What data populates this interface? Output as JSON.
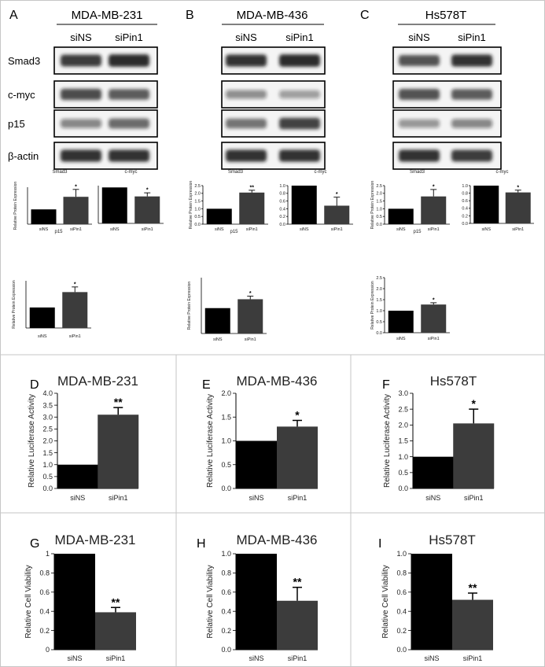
{
  "colors": {
    "bar_black": "#000000",
    "bar_dark": "#3c3c3c",
    "band": "#1a1a1a",
    "panel_border": "#bfbfbf"
  },
  "blots": [
    {
      "panel": "A",
      "cell_line": "MDA-MB-231",
      "lanes": [
        "siNS",
        "siPin1"
      ],
      "rows": [
        {
          "label": "Smad3",
          "intensity": [
            0.85,
            0.95
          ]
        },
        {
          "label": "c-myc",
          "intensity": [
            0.75,
            0.65
          ]
        },
        {
          "label": "p15",
          "intensity": [
            0.35,
            0.55
          ]
        },
        {
          "label": "β-actin",
          "intensity": [
            0.9,
            0.9
          ]
        }
      ]
    },
    {
      "panel": "B",
      "cell_line": "MDA-MB-436",
      "lanes": [
        "siNS",
        "siPin1"
      ],
      "rows": [
        {
          "label": "Smad3",
          "intensity": [
            0.9,
            0.95
          ]
        },
        {
          "label": "c-myc",
          "intensity": [
            0.3,
            0.2
          ]
        },
        {
          "label": "p15",
          "intensity": [
            0.5,
            0.8
          ]
        },
        {
          "label": "β-actin",
          "intensity": [
            0.9,
            0.9
          ]
        }
      ]
    },
    {
      "panel": "C",
      "cell_line": "Hs578T",
      "lanes": [
        "siNS",
        "siPin1"
      ],
      "rows": [
        {
          "label": "Smad3",
          "intensity": [
            0.7,
            0.9
          ]
        },
        {
          "label": "c-myc",
          "intensity": [
            0.7,
            0.65
          ]
        },
        {
          "label": "p15",
          "intensity": [
            0.25,
            0.35
          ]
        },
        {
          "label": "β-actin",
          "intensity": [
            0.9,
            0.85
          ]
        }
      ]
    }
  ],
  "chart_data": [
    {
      "type": "bar",
      "panel": "A",
      "title": "Smad3",
      "categories": [
        "siNS",
        "siPin1"
      ],
      "values": [
        1.0,
        1.85
      ],
      "errors": [
        0,
        0.5
      ],
      "sig": [
        "",
        "*"
      ],
      "ylabel": "Relative Protein Expression",
      "ylim": [
        0,
        2.5
      ],
      "yticks": [],
      "colors": [
        "#000000",
        "#3c3c3c"
      ]
    },
    {
      "type": "bar",
      "panel": "A",
      "title": "c-myc",
      "categories": [
        "siNS",
        "siPin1"
      ],
      "values": [
        1.0,
        0.75
      ],
      "errors": [
        0,
        0.1
      ],
      "sig": [
        "",
        "*"
      ],
      "ylabel": "",
      "ylim": [
        0,
        1.05
      ],
      "yticks": [],
      "colors": [
        "#000000",
        "#3c3c3c"
      ]
    },
    {
      "type": "bar",
      "panel": "A",
      "title": "p15",
      "categories": [
        "siNS",
        "siPin1"
      ],
      "values": [
        1.0,
        1.75
      ],
      "errors": [
        0,
        0.25
      ],
      "sig": [
        "",
        "*"
      ],
      "ylabel": "Relative Protein Expression",
      "ylim": [
        0,
        2.3
      ],
      "yticks": [],
      "colors": [
        "#000000",
        "#3c3c3c"
      ]
    },
    {
      "type": "bar",
      "panel": "B",
      "title": "Smad3",
      "categories": [
        "siNS",
        "siPin1"
      ],
      "values": [
        1.0,
        2.05
      ],
      "errors": [
        0,
        0.15
      ],
      "sig": [
        "",
        "**"
      ],
      "ylabel": "Relative Protein Expression",
      "ylim": [
        0,
        2.5
      ],
      "yticks": [
        "0.0",
        "0.5",
        "1.0",
        "1.5",
        "2.0",
        "2.5"
      ],
      "colors": [
        "#000000",
        "#3c3c3c"
      ]
    },
    {
      "type": "bar",
      "panel": "B",
      "title": "c-myc",
      "categories": [
        "siNS",
        "siPin1"
      ],
      "values": [
        1.0,
        0.48
      ],
      "errors": [
        0,
        0.22
      ],
      "sig": [
        "",
        "*"
      ],
      "ylabel": "",
      "ylim": [
        0,
        1.0
      ],
      "yticks": [
        "0.0",
        "0.2",
        "0.4",
        "0.6",
        "0.8",
        "1.0"
      ],
      "colors": [
        "#000000",
        "#3c3c3c"
      ]
    },
    {
      "type": "bar",
      "panel": "B",
      "title": "p15",
      "categories": [
        "siNS",
        "siPin1"
      ],
      "values": [
        1.0,
        1.35
      ],
      "errors": [
        0,
        0.12
      ],
      "sig": [
        "",
        "*"
      ],
      "ylabel": "Relative Protein Expression",
      "ylim": [
        0,
        2.2
      ],
      "yticks": [],
      "colors": [
        "#000000",
        "#3c3c3c"
      ]
    },
    {
      "type": "bar",
      "panel": "C",
      "title": "Smad3",
      "categories": [
        "siNS",
        "siPin1"
      ],
      "values": [
        1.0,
        1.8
      ],
      "errors": [
        0,
        0.45
      ],
      "sig": [
        "",
        "*"
      ],
      "ylabel": "Relative Protein Expression",
      "ylim": [
        0,
        2.5
      ],
      "yticks": [
        "0.0",
        "0.5",
        "1.0",
        "1.5",
        "2.0",
        "2.5"
      ],
      "colors": [
        "#000000",
        "#3c3c3c"
      ]
    },
    {
      "type": "bar",
      "panel": "C",
      "title": "c-myc",
      "categories": [
        "siNS",
        "siPin1"
      ],
      "values": [
        1.0,
        0.82
      ],
      "errors": [
        0,
        0.06
      ],
      "sig": [
        "",
        "*"
      ],
      "ylabel": "",
      "ylim": [
        0,
        1.0
      ],
      "yticks": [
        "0.0",
        "0.2",
        "0.4",
        "0.6",
        "0.8",
        "1.0"
      ],
      "colors": [
        "#000000",
        "#3c3c3c"
      ]
    },
    {
      "type": "bar",
      "panel": "C",
      "title": "p15",
      "categories": [
        "siNS",
        "siPin1"
      ],
      "values": [
        1.0,
        1.28
      ],
      "errors": [
        0,
        0.08
      ],
      "sig": [
        "",
        "*"
      ],
      "ylabel": "Relative Protein Expression",
      "ylim": [
        0,
        2.5
      ],
      "yticks": [
        "0.0",
        "0.5",
        "1.0",
        "1.5",
        "2.0",
        "2.5"
      ],
      "colors": [
        "#000000",
        "#3c3c3c"
      ]
    },
    {
      "type": "bar",
      "panel": "D",
      "title": "MDA-MB-231",
      "categories": [
        "siNS",
        "siPin1"
      ],
      "values": [
        1.0,
        3.1
      ],
      "errors": [
        0,
        0.3
      ],
      "sig": [
        "",
        "**"
      ],
      "ylabel": "Relative Luciferase Activity",
      "ylim": [
        0,
        4.0
      ],
      "yticks": [
        "0.0",
        "0.5",
        "1.0",
        "1.5",
        "2.0",
        "2.5",
        "3.0",
        "3.5",
        "4.0"
      ],
      "colors": [
        "#000000",
        "#3c3c3c"
      ]
    },
    {
      "type": "bar",
      "panel": "E",
      "title": "MDA-MB-436",
      "categories": [
        "siNS",
        "siPin1"
      ],
      "values": [
        1.0,
        1.3
      ],
      "errors": [
        0,
        0.13
      ],
      "sig": [
        "",
        "*"
      ],
      "ylabel": "Relative Luciferase Activity",
      "ylim": [
        0,
        2.0
      ],
      "yticks": [
        "0.0",
        "0.5",
        "1.0",
        "1.5",
        "2.0"
      ],
      "colors": [
        "#000000",
        "#3c3c3c"
      ]
    },
    {
      "type": "bar",
      "panel": "F",
      "title": "Hs578T",
      "categories": [
        "siNS",
        "siPin1"
      ],
      "values": [
        1.0,
        2.05
      ],
      "errors": [
        0,
        0.45
      ],
      "sig": [
        "",
        "*"
      ],
      "ylabel": "Relative Luciferase Activity",
      "ylim": [
        0,
        3.0
      ],
      "yticks": [
        "0.0",
        "0.5",
        "1.0",
        "1.5",
        "2.0",
        "2.5",
        "3.0"
      ],
      "colors": [
        "#000000",
        "#3c3c3c"
      ]
    },
    {
      "type": "bar",
      "panel": "G",
      "title": "MDA-MB-231",
      "categories": [
        "siNS",
        "siPin1"
      ],
      "values": [
        1.0,
        0.39
      ],
      "errors": [
        0,
        0.05
      ],
      "sig": [
        "",
        "**"
      ],
      "ylabel": "Relative Cell Viability",
      "ylim": [
        0,
        1.0
      ],
      "yticks": [
        "0",
        "0.2",
        "0.4",
        "0.6",
        "0.8",
        "1"
      ],
      "colors": [
        "#000000",
        "#3c3c3c"
      ]
    },
    {
      "type": "bar",
      "panel": "H",
      "title": "MDA-MB-436",
      "categories": [
        "siNS",
        "siPin1"
      ],
      "values": [
        1.0,
        0.51
      ],
      "errors": [
        0,
        0.14
      ],
      "sig": [
        "",
        "**"
      ],
      "ylabel": "Relative Cell Viability",
      "ylim": [
        0,
        1.0
      ],
      "yticks": [
        "0.0",
        "0.2",
        "0.4",
        "0.6",
        "0.8",
        "1.0"
      ],
      "colors": [
        "#000000",
        "#3c3c3c"
      ]
    },
    {
      "type": "bar",
      "panel": "I",
      "title": "Hs578T",
      "categories": [
        "siNS",
        "siPin1"
      ],
      "values": [
        1.0,
        0.52
      ],
      "errors": [
        0,
        0.07
      ],
      "sig": [
        "",
        "**"
      ],
      "ylabel": "Relative Cell Viability",
      "ylim": [
        0,
        1.0
      ],
      "yticks": [
        "0.0",
        "0.2",
        "0.4",
        "0.6",
        "0.8",
        "1.0"
      ],
      "colors": [
        "#000000",
        "#3c3c3c"
      ]
    }
  ]
}
